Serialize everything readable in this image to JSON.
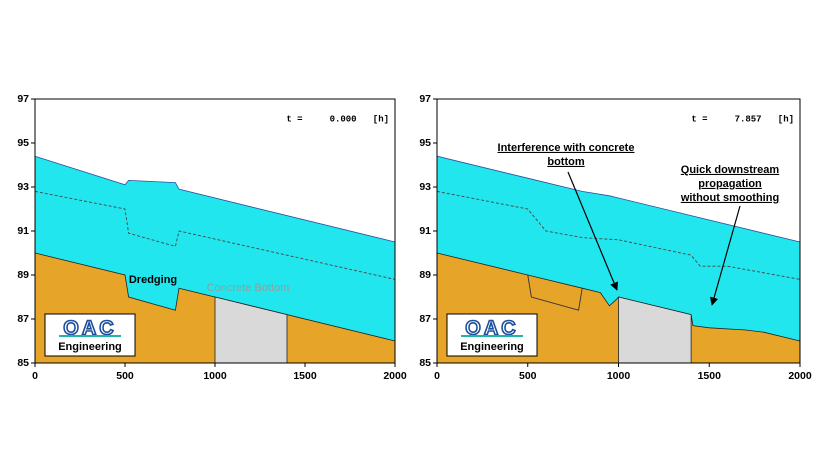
{
  "chart_data": [
    {
      "type": "area",
      "time_label": "t =     0.000   [h]",
      "xlim": [
        0,
        2000
      ],
      "xticks": [
        0,
        500,
        1000,
        1500,
        2000
      ],
      "ylim": [
        85,
        97
      ],
      "yticks": [
        85,
        87,
        89,
        91,
        93,
        95,
        97
      ],
      "series": [
        {
          "style": "area",
          "color": "#22e6ee",
          "stroke": "#2b4fa0",
          "x": [
            0,
            500,
            520,
            780,
            800,
            2000
          ],
          "values": [
            94.4,
            93.1,
            93.3,
            93.2,
            92.9,
            90.5
          ]
        },
        {
          "style": "area",
          "color": "#e6a428",
          "stroke": "#222222",
          "x": [
            0,
            500,
            520,
            780,
            800,
            2000
          ],
          "values": [
            90.0,
            89.0,
            88.0,
            87.4,
            88.4,
            86.0
          ]
        },
        {
          "style": "area",
          "color": "#d9d9d9",
          "stroke": "#222222",
          "x": [
            1000,
            1400
          ],
          "values": [
            88.0,
            87.2
          ]
        },
        {
          "style": "dashed",
          "color": "#444444",
          "x": [
            0,
            500,
            520,
            780,
            800,
            2000
          ],
          "values": [
            92.8,
            92.0,
            90.9,
            90.3,
            91.0,
            88.8
          ]
        }
      ],
      "annotations": [
        [
          "Dredging"
        ],
        [
          "Concrete Bottom"
        ]
      ],
      "logo": {
        "mark": "OAC",
        "text": "Engineering"
      }
    },
    {
      "type": "area",
      "time_label": "t =     7.857   [h]",
      "xlim": [
        0,
        2000
      ],
      "xticks": [
        0,
        500,
        1000,
        1500,
        2000
      ],
      "ylim": [
        85,
        97
      ],
      "yticks": [
        85,
        87,
        89,
        91,
        93,
        95,
        97
      ],
      "series": [
        {
          "style": "area",
          "color": "#22e6ee",
          "stroke": "#2b4fa0",
          "x": [
            0,
            500,
            800,
            950,
            1000,
            1400,
            2000
          ],
          "values": [
            94.4,
            93.4,
            92.8,
            92.6,
            92.5,
            91.7,
            90.5
          ]
        },
        {
          "style": "area",
          "color": "#e6a428",
          "stroke": "#222222",
          "x": [
            0,
            500,
            800,
            900,
            950,
            990,
            1000,
            1400,
            1410,
            1500,
            1700,
            1800,
            2000
          ],
          "values": [
            90.0,
            89.0,
            88.4,
            88.2,
            87.6,
            87.9,
            88.0,
            87.2,
            86.7,
            86.6,
            86.5,
            86.4,
            86.0
          ]
        },
        {
          "style": "line",
          "color": "#333333",
          "x": [
            500,
            520,
            780,
            800
          ],
          "values": [
            89.0,
            88.0,
            87.4,
            88.4
          ]
        },
        {
          "style": "area",
          "color": "#d9d9d9",
          "stroke": "#222222",
          "x": [
            1000,
            1400
          ],
          "values": [
            88.0,
            87.2
          ]
        },
        {
          "style": "dashed",
          "color": "#444444",
          "x": [
            0,
            500,
            600,
            800,
            1000,
            1400,
            1450,
            1600,
            2000
          ],
          "values": [
            92.8,
            92.0,
            91.0,
            90.7,
            90.6,
            89.9,
            89.4,
            89.4,
            88.8
          ]
        }
      ],
      "annotations": [
        [
          "Interference with concrete",
          "bottom"
        ],
        [
          "Quick downstream",
          "propagation",
          "without smoothing"
        ]
      ],
      "logo": {
        "mark": "OAC",
        "text": "Engineering"
      }
    }
  ]
}
